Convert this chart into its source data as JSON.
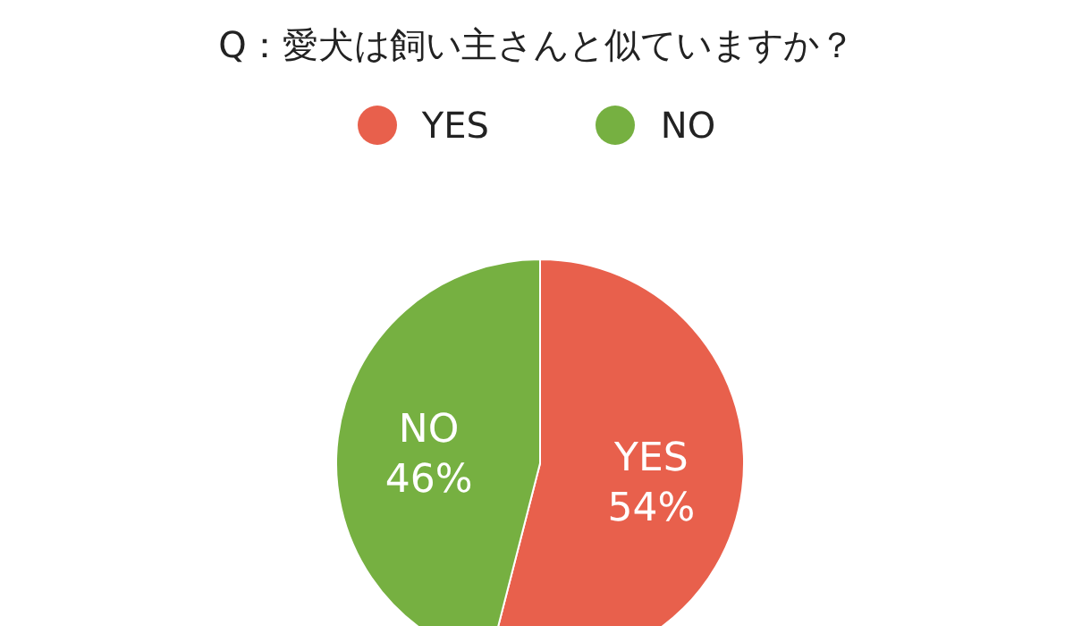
{
  "chart_data": {
    "type": "pie",
    "title": "Q：愛犬は飼い主さんと似ていますか？",
    "categories": [
      "YES",
      "NO"
    ],
    "values": [
      54,
      46
    ],
    "colors": [
      "#e8604c",
      "#76b041"
    ],
    "legend": "top",
    "value_labels": [
      "54%",
      "46%"
    ]
  }
}
